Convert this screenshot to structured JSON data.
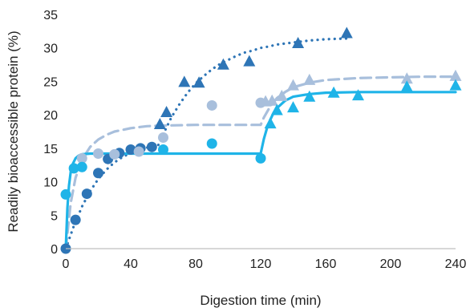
{
  "chart_data": {
    "type": "scatter",
    "xlabel": "Digestion time (min)",
    "ylabel": "Readily bioaccessible protein (%)",
    "xlim": [
      0,
      240
    ],
    "ylim": [
      0,
      35
    ],
    "xticks": [
      0,
      40,
      80,
      120,
      160,
      200,
      240
    ],
    "yticks": [
      0,
      5,
      10,
      15,
      20,
      25,
      30,
      35
    ],
    "grid": false,
    "legend": "none",
    "series": [
      {
        "marker": "circle",
        "color": "#2e75b6",
        "x": [
          0,
          6,
          13,
          20,
          26,
          33,
          40,
          46,
          53
        ],
        "y": [
          0,
          4.3,
          8.2,
          11.3,
          13.4,
          14.3,
          14.8,
          15.0,
          15.2
        ]
      },
      {
        "marker": "circle",
        "color": "#a8bfdc",
        "x": [
          10,
          20,
          30,
          45,
          60,
          90,
          120
        ],
        "y": [
          13.5,
          14.2,
          14.1,
          14.5,
          16.6,
          21.4,
          21.8
        ]
      },
      {
        "marker": "circle",
        "color": "#1fb4e8",
        "x": [
          0,
          5,
          10,
          60,
          90,
          120
        ],
        "y": [
          8.1,
          12.0,
          12.2,
          14.8,
          15.7,
          13.5
        ]
      },
      {
        "marker": "triangle",
        "color": "#2e75b6",
        "x": [
          58,
          62,
          73,
          82,
          97,
          113,
          143,
          173
        ],
        "y": [
          18.5,
          20.3,
          24.8,
          24.7,
          27.4,
          27.9,
          30.6,
          32.1
        ]
      },
      {
        "marker": "triangle",
        "color": "#a8bfdc",
        "x": [
          123,
          127,
          133,
          140,
          150,
          210,
          240
        ],
        "y": [
          21.9,
          22.0,
          22.7,
          24.3,
          25.1,
          25.3,
          25.7
        ]
      },
      {
        "marker": "triangle",
        "color": "#1fb4e8",
        "x": [
          126,
          130,
          140,
          150,
          165,
          180,
          210,
          240
        ],
        "y": [
          18.6,
          20.6,
          21.0,
          22.6,
          23.2,
          22.8,
          24.1,
          24.3
        ]
      }
    ],
    "fits": [
      {
        "style": "dotted",
        "color": "#2e75b6",
        "x": [
          0,
          5,
          10,
          15,
          20,
          25,
          30,
          35,
          40,
          45,
          50,
          55,
          57,
          60,
          65,
          70,
          75,
          80,
          85,
          90,
          95,
          100,
          105,
          110,
          115,
          120,
          125,
          130,
          140,
          150,
          160,
          173
        ],
        "y": [
          0,
          3.4,
          6.3,
          8.6,
          10.4,
          11.8,
          12.9,
          13.7,
          14.3,
          14.8,
          15.1,
          15.4,
          15.5,
          17.1,
          19.6,
          21.6,
          23.3,
          24.7,
          25.8,
          26.8,
          27.6,
          28.2,
          28.8,
          29.3,
          29.6,
          30.0,
          30.2,
          30.5,
          30.8,
          31.1,
          31.3,
          31.4
        ]
      },
      {
        "style": "dashed",
        "color": "#a8bfdc",
        "x": [
          0,
          3,
          6,
          10,
          15,
          20,
          25,
          30,
          40,
          50,
          60,
          80,
          100,
          120,
          122,
          126,
          130,
          135,
          140,
          150,
          160,
          180,
          200,
          220,
          240
        ],
        "y": [
          0,
          6.8,
          10.6,
          13.3,
          15.2,
          16.3,
          17.0,
          17.5,
          18.0,
          18.3,
          18.4,
          18.5,
          18.5,
          18.5,
          19.6,
          21.3,
          22.5,
          23.4,
          24.1,
          24.8,
          25.2,
          25.5,
          25.6,
          25.7,
          25.7
        ]
      },
      {
        "style": "solid",
        "color": "#1fb4e8",
        "x": [
          0,
          1,
          2,
          3,
          4,
          6,
          8,
          10,
          15,
          20,
          40,
          60,
          80,
          100,
          120,
          122,
          124,
          126,
          128,
          130,
          135,
          140,
          150,
          160,
          180,
          200,
          220,
          240
        ],
        "y": [
          0,
          6.0,
          9.4,
          11.4,
          12.5,
          13.5,
          13.9,
          14.1,
          14.2,
          14.2,
          14.2,
          14.2,
          14.2,
          14.2,
          14.2,
          16.4,
          18.1,
          19.3,
          20.3,
          21.0,
          22.1,
          22.7,
          23.1,
          23.3,
          23.4,
          23.4,
          23.4,
          23.4
        ]
      }
    ]
  }
}
